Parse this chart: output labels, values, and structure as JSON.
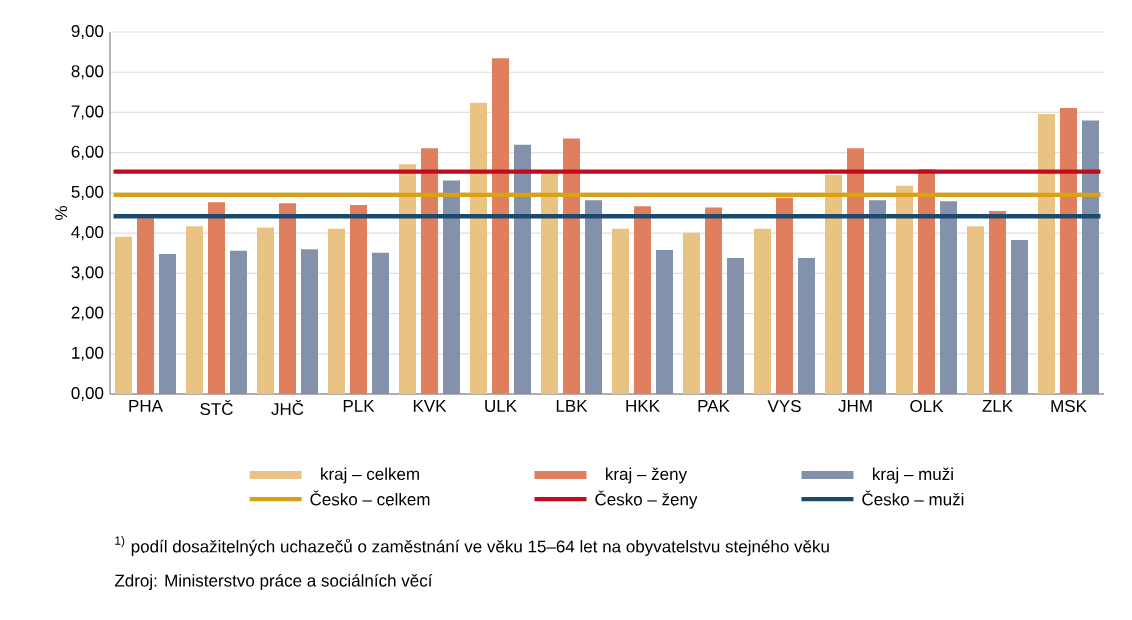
{
  "chart_data": {
    "type": "bar",
    "categories": [
      "PHA",
      "STČ",
      "JHČ",
      "PLK",
      "KVK",
      "ULK",
      "LBK",
      "HKK",
      "PAK",
      "VYS",
      "JHM",
      "OLK",
      "ZLK",
      "MSK"
    ],
    "series": [
      {
        "name": "kraj – celkem",
        "color": "#e8c384",
        "values": [
          3.91,
          4.17,
          4.14,
          4.11,
          5.71,
          7.24,
          5.5,
          4.11,
          4.01,
          4.11,
          5.45,
          5.18,
          4.17,
          6.96
        ]
      },
      {
        "name": "kraj – ženy",
        "color": "#e07f5e",
        "values": [
          4.37,
          4.77,
          4.74,
          4.7,
          6.11,
          8.35,
          6.35,
          4.67,
          4.64,
          4.88,
          6.11,
          5.59,
          4.55,
          7.11
        ]
      },
      {
        "name": "kraj – muži",
        "color": "#8391ab",
        "values": [
          3.48,
          3.56,
          3.6,
          3.51,
          5.31,
          6.2,
          4.82,
          3.58,
          3.38,
          3.38,
          4.82,
          4.79,
          3.83,
          6.8
        ]
      }
    ],
    "ref_lines": [
      {
        "axis": "y",
        "value": 4.95,
        "label": "Česko – celkem",
        "color": "#d9a114"
      },
      {
        "axis": "y",
        "value": 5.53,
        "label": "Česko – ženy",
        "color": "#c00d1e"
      },
      {
        "axis": "y",
        "value": 4.42,
        "label": "Česko – muži",
        "color": "#1c4a6e"
      }
    ],
    "ylabel": "%",
    "ylim": [
      0,
      9
    ],
    "yticks": [
      {
        "value": 0,
        "label": "0,00"
      },
      {
        "value": 1,
        "label": "1,00"
      },
      {
        "value": 2,
        "label": "2,00"
      },
      {
        "value": 3,
        "label": "3,00"
      },
      {
        "value": 4,
        "label": "4,00"
      },
      {
        "value": 5,
        "label": "5,00"
      },
      {
        "value": 6,
        "label": "6,00"
      },
      {
        "value": 7,
        "label": "7,00"
      },
      {
        "value": 8,
        "label": "8,00"
      },
      {
        "value": 9,
        "label": "9,00"
      }
    ],
    "grid": "y",
    "legend": "bottom",
    "annotations": [
      "$^{1)}$ podíl dosažitelných uchazečů o zaměstnání ve věku 15–64 let na obyvatelstvu stejného věku",
      "Zdroj: Ministerstvo práce a sociálních věcí"
    ]
  }
}
